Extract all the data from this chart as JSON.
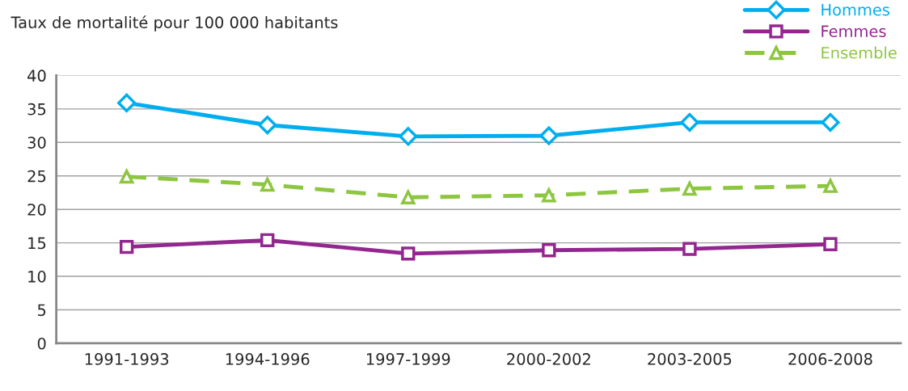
{
  "chart_data": {
    "type": "line",
    "title": "Taux de mortalité pour 100 000 habitants",
    "categories": [
      "1991-1993",
      "1994-1996",
      "1997-1999",
      "2000-2002",
      "2003-2005",
      "2006-2008"
    ],
    "series": [
      {
        "name": "Hommes",
        "color": "#00aeef",
        "values": [
          35.9,
          32.6,
          30.9,
          31.0,
          33.0,
          33.0
        ],
        "marker": "diamond",
        "line_style": "solid"
      },
      {
        "name": "Femmes",
        "color": "#93278f",
        "values": [
          14.4,
          15.4,
          13.4,
          13.9,
          14.1,
          14.8
        ],
        "marker": "square",
        "line_style": "solid"
      },
      {
        "name": "Ensemble",
        "color": "#8dc63f",
        "values": [
          24.9,
          23.7,
          21.8,
          22.1,
          23.1,
          23.5
        ],
        "marker": "triangle",
        "line_style": "dashed"
      }
    ],
    "ylim": [
      0,
      40
    ],
    "yticks": [
      0,
      5,
      10,
      15,
      20,
      25,
      30,
      35,
      40
    ],
    "grid": "y",
    "legend": "top right"
  }
}
